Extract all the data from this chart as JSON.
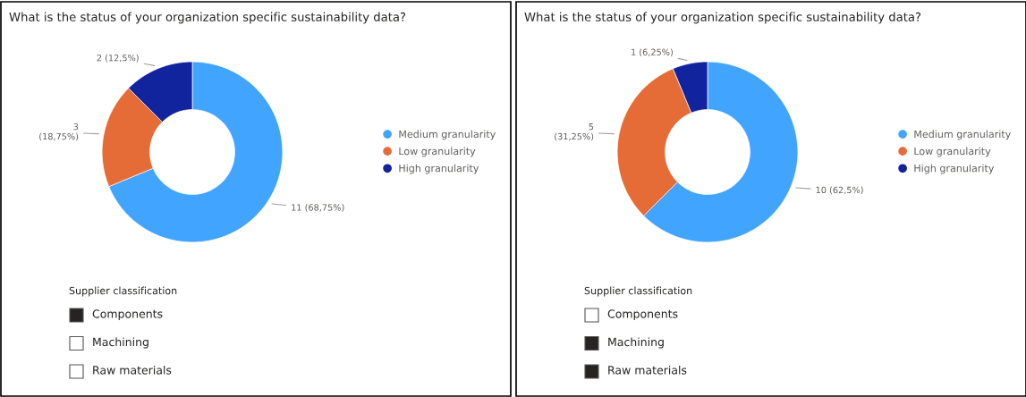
{
  "chart_data": [
    {
      "type": "donut",
      "title": "What is the status of your organization specific sustainability data?",
      "categories": [
        "Medium granularity",
        "Low granularity",
        "High granularity"
      ],
      "values": [
        11,
        3,
        2
      ],
      "colors": [
        "#41a4ff",
        "#e66c37",
        "#12239e"
      ],
      "value_labels": [
        "11 (68,75%)",
        "3\n(18,75%)",
        "2 (12,5%)"
      ],
      "legend": "right"
    },
    {
      "type": "other",
      "title": "Supplier classification",
      "categories": [
        "Components",
        "Machining",
        "Raw materials"
      ],
      "colors": [
        "#252423",
        "#ffffff",
        "#ffffff"
      ]
    },
    {
      "type": "donut",
      "title": "What is the status of your organization specific sustainability data?",
      "categories": [
        "Medium granularity",
        "Low granularity",
        "High granularity"
      ],
      "values": [
        10,
        5,
        1
      ],
      "colors": [
        "#41a4ff",
        "#e66c37",
        "#12239e"
      ],
      "value_labels": [
        "10 (62,5%)",
        "5\n(31,25%)",
        "1 (6,25%)"
      ],
      "legend": "right"
    },
    {
      "type": "other",
      "title": "Supplier classification",
      "categories": [
        "Components",
        "Machining",
        "Raw materials"
      ],
      "colors": [
        "#ffffff",
        "#252423",
        "#252423"
      ]
    }
  ]
}
